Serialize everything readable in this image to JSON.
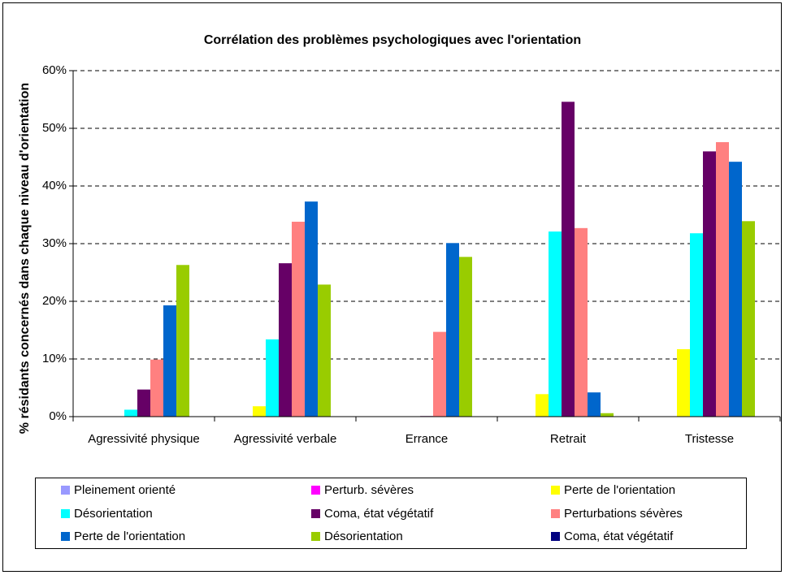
{
  "chart_data": {
    "type": "bar",
    "title": "Corrélation des problèmes psychologiques avec l'orientation",
    "y_label": "% résidants concernés dans chaque niveau d'orientation",
    "categories": [
      "Agressivité physique",
      "Agressivité verbale",
      "Errance",
      "Retrait",
      "Tristesse"
    ],
    "series": [
      {
        "name": "Pleinement orienté",
        "color": "#9999ff",
        "values": [
          0,
          0,
          0,
          0,
          0
        ]
      },
      {
        "name": "Perturb. sévères",
        "color": "#ff00ff",
        "values": [
          0,
          0,
          0,
          0,
          0
        ]
      },
      {
        "name": "Perte de l'orientation",
        "color": "#ffff00",
        "values": [
          0,
          1.8,
          0,
          3.9,
          11.7
        ]
      },
      {
        "name": "Désorientation",
        "color": "#00ffff",
        "values": [
          1.2,
          13.4,
          0,
          32.1,
          31.8
        ]
      },
      {
        "name": "Coma, état végétatif",
        "color": "#660066",
        "values": [
          4.7,
          26.6,
          0.1,
          54.6,
          46.0
        ]
      },
      {
        "name": "Perturbations sévères",
        "color": "#ff8080",
        "values": [
          9.9,
          33.8,
          14.7,
          32.7,
          47.6
        ]
      },
      {
        "name": "Perte de l'orientation",
        "color": "#0066cc",
        "values": [
          19.3,
          37.3,
          30.1,
          4.2,
          44.2
        ]
      },
      {
        "name": "Désorientation",
        "color": "#99cc00",
        "values": [
          26.3,
          22.9,
          27.7,
          0.6,
          33.9
        ]
      },
      {
        "name": "Coma, état végétatif",
        "color": "#000080",
        "values": [
          0,
          0,
          0,
          0,
          0
        ]
      }
    ],
    "ylim": [
      0,
      60
    ],
    "yticks": [
      {
        "value": 0,
        "label": "0%"
      },
      {
        "value": 10,
        "label": "10%"
      },
      {
        "value": 20,
        "label": "20%"
      },
      {
        "value": 30,
        "label": "30%"
      },
      {
        "value": 40,
        "label": "40%"
      },
      {
        "value": 50,
        "label": "50%"
      },
      {
        "value": 60,
        "label": "60%"
      }
    ],
    "grid": true
  }
}
